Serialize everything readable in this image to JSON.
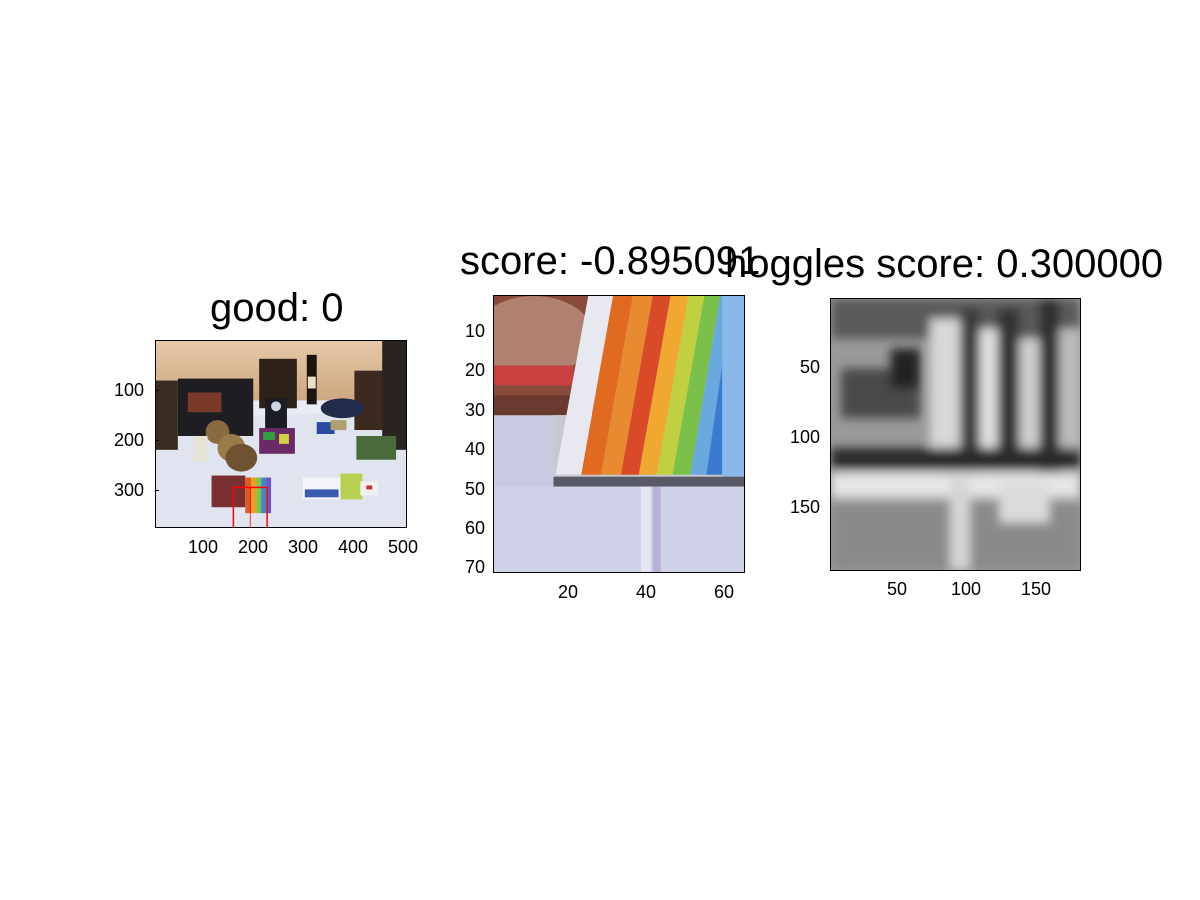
{
  "panels": {
    "scene": {
      "title": "good: 0",
      "x_ticks": [
        "100",
        "200",
        "300",
        "400",
        "500"
      ],
      "y_ticks": [
        "100",
        "200",
        "300"
      ],
      "image": "photo of a dining table with boxes, teddy bears, a wine bottle and a rainbow book, red detection box near the bottom"
    },
    "crop": {
      "title": "score: -0.895091",
      "x_ticks": [
        "20",
        "40",
        "60"
      ],
      "y_ticks": [
        "10",
        "20",
        "30",
        "40",
        "50",
        "60",
        "70"
      ],
      "image": "close-up crop of rainbow-colored stripes on a book cover"
    },
    "hoggles": {
      "title": "hoggles score: 0.300000",
      "x_ticks": [
        "50",
        "100",
        "150"
      ],
      "y_ticks": [
        "50",
        "100",
        "150"
      ],
      "image": "grayscale HOG inversion visualization"
    }
  }
}
